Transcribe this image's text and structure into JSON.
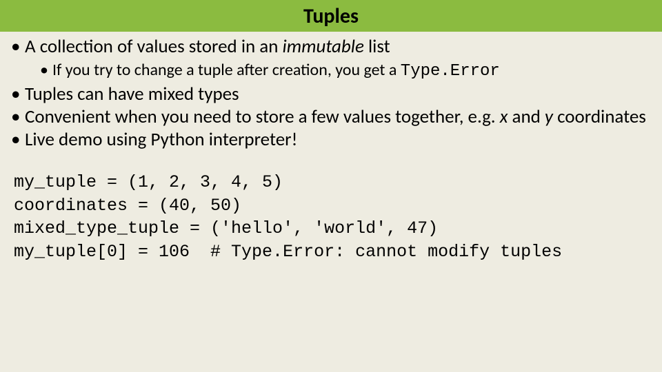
{
  "colors": {
    "header_bg": "#8bbb40",
    "page_bg": "#eeece1",
    "text": "#000000"
  },
  "typography": {
    "title_fontsize": 30,
    "bullet_fontsize": 27,
    "subbullet_fontsize": 24,
    "code_fontsize": 25,
    "body_font": "Calibri",
    "mono_font": "Consolas"
  },
  "title": "Tuples",
  "bullets": {
    "b1_pre": "A collection of values stored in an ",
    "b1_em": "immutable",
    "b1_post": " list",
    "b1_sub_pre": "If you try to change a tuple after creation, you get a ",
    "b1_sub_code": "Type.Error",
    "b2": "Tuples can have mixed types",
    "b3_pre": "Convenient when you need to store a few values together, e.g. ",
    "b3_x": "x",
    "b3_mid": " and ",
    "b3_y": "y",
    "b3_post": " coordinates",
    "b4": "Live demo using Python interpreter!"
  },
  "code": {
    "l1": "my_tuple = (1, 2, 3, 4, 5)",
    "l2": "coordinates = (40, 50)",
    "l3": "mixed_type_tuple = ('hello', 'world', 47)",
    "l4": "my_tuple[0] = 106  # Type.Error: cannot modify tuples"
  }
}
